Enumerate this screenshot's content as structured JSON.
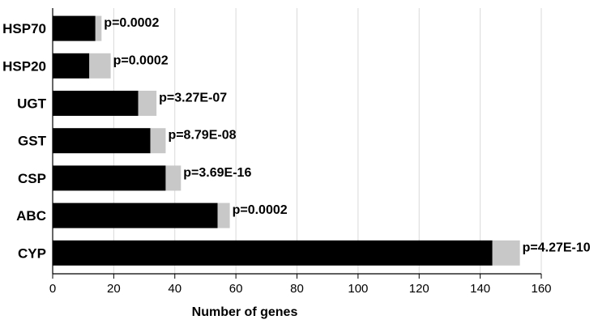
{
  "chart_data": {
    "type": "bar",
    "orientation": "horizontal",
    "stacked": true,
    "categories": [
      "HSP70",
      "HSP20",
      "UGT",
      "GST",
      "CSP",
      "ABC",
      "CYP"
    ],
    "series": [
      {
        "values": [
          14,
          12,
          28,
          32,
          37,
          54,
          144
        ],
        "color": "#000000"
      },
      {
        "values": [
          2,
          7,
          6,
          5,
          5,
          4,
          9
        ],
        "color": "#c8c8c8"
      }
    ],
    "annotations": [
      "p=0.0002",
      "p=0.0002",
      "p=3.27E-07",
      "p=8.79E-08",
      "p=3.69E-16",
      "p=0.0002",
      "p=4.27E-10"
    ],
    "xlabel": "Number of genes",
    "ylabel": "",
    "xlim": [
      0,
      160
    ],
    "xticks": [
      0,
      20,
      40,
      60,
      80,
      100,
      120,
      140,
      160
    ],
    "grid": "vertical",
    "legend": "none"
  }
}
